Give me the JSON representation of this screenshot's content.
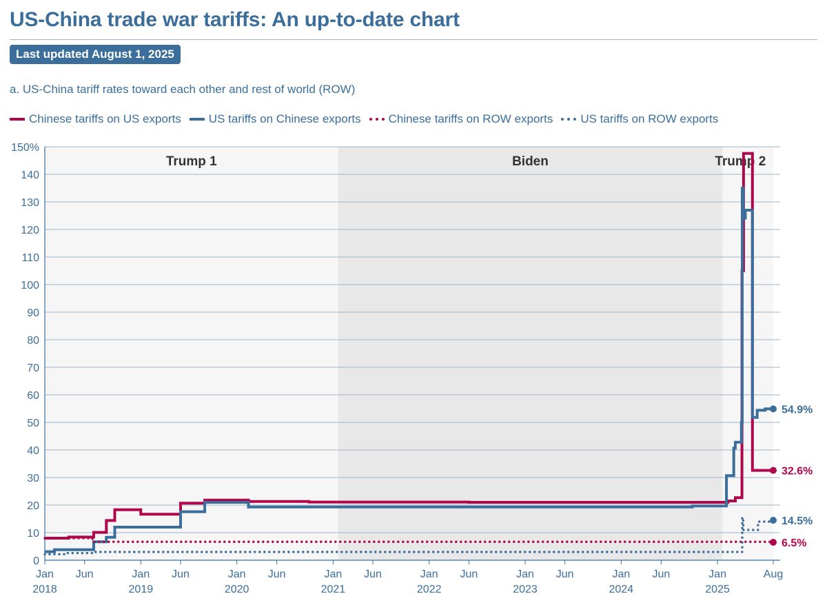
{
  "header": {
    "title": "US-China trade war tariffs: An up-to-date chart",
    "updated": "Last updated August 1, 2025",
    "subtitle": "a. US-China tariff rates toward each other and rest of world (ROW)"
  },
  "colors": {
    "china": "#b0064b",
    "us": "#3b6e9a"
  },
  "chart_data": {
    "type": "line",
    "title": "a. US-China tariff rates toward each other and rest of world (ROW)",
    "x_range": [
      "2018-01-01",
      "2025-08-01"
    ],
    "ylim": [
      0,
      150
    ],
    "y_ticks": [
      {
        "value": 0,
        "label": "0"
      },
      {
        "value": 10,
        "label": "10"
      },
      {
        "value": 20,
        "label": "20"
      },
      {
        "value": 30,
        "label": "30"
      },
      {
        "value": 40,
        "label": "40"
      },
      {
        "value": 50,
        "label": "50"
      },
      {
        "value": 60,
        "label": "60"
      },
      {
        "value": 70,
        "label": "70"
      },
      {
        "value": 80,
        "label": "80"
      },
      {
        "value": 90,
        "label": "90"
      },
      {
        "value": 100,
        "label": "100"
      },
      {
        "value": 110,
        "label": "110"
      },
      {
        "value": 120,
        "label": "120"
      },
      {
        "value": 130,
        "label": "130"
      },
      {
        "value": 140,
        "label": "140"
      },
      {
        "value": 150,
        "label": "150%"
      }
    ],
    "x_ticks": [
      {
        "date": "2018-01-01",
        "label": "Jan",
        "year": "2018"
      },
      {
        "date": "2018-06-01",
        "label": "Jun",
        "year": ""
      },
      {
        "date": "2019-01-01",
        "label": "Jan",
        "year": "2019"
      },
      {
        "date": "2019-06-01",
        "label": "Jun",
        "year": ""
      },
      {
        "date": "2020-01-01",
        "label": "Jan",
        "year": "2020"
      },
      {
        "date": "2020-06-01",
        "label": "Jun",
        "year": ""
      },
      {
        "date": "2021-01-01",
        "label": "Jan",
        "year": "2021"
      },
      {
        "date": "2021-06-01",
        "label": "Jun",
        "year": ""
      },
      {
        "date": "2022-01-01",
        "label": "Jan",
        "year": "2022"
      },
      {
        "date": "2022-06-01",
        "label": "Jun",
        "year": ""
      },
      {
        "date": "2023-01-01",
        "label": "Jan",
        "year": "2023"
      },
      {
        "date": "2023-06-01",
        "label": "Jun",
        "year": ""
      },
      {
        "date": "2024-01-01",
        "label": "Jan",
        "year": "2024"
      },
      {
        "date": "2024-06-01",
        "label": "Jun",
        "year": ""
      },
      {
        "date": "2025-01-01",
        "label": "Jan",
        "year": "2025"
      },
      {
        "date": "2025-08-01",
        "label": "Aug",
        "year": ""
      }
    ],
    "grid": true,
    "legend_position": "top",
    "eras": [
      {
        "name": "Trump 1",
        "start": "2018-01-01",
        "end": "2021-01-20",
        "fill": "#f6f6f6"
      },
      {
        "name": "Biden",
        "start": "2021-01-20",
        "end": "2025-01-20",
        "fill": "#e8e8e8"
      },
      {
        "name": "Trump 2",
        "start": "2025-01-20",
        "end": "2025-08-01",
        "fill": "#f6f6f6"
      }
    ],
    "series": [
      {
        "name": "Chinese tariffs on US exports",
        "style": "solid",
        "color": "#b0064b",
        "end_label": "32.6%",
        "points": [
          [
            "2018-01-01",
            8.0
          ],
          [
            "2018-04-02",
            8.4
          ],
          [
            "2018-07-06",
            10.1
          ],
          [
            "2018-08-23",
            14.4
          ],
          [
            "2018-09-24",
            18.3
          ],
          [
            "2019-01-01",
            16.7
          ],
          [
            "2019-06-01",
            20.7
          ],
          [
            "2019-09-01",
            21.8
          ],
          [
            "2020-02-14",
            21.3
          ],
          [
            "2020-10-01",
            21.1
          ],
          [
            "2021-06-01",
            21.1
          ],
          [
            "2022-06-01",
            21.0
          ],
          [
            "2023-06-01",
            21.0
          ],
          [
            "2025-02-10",
            21.5
          ],
          [
            "2025-03-10",
            22.7
          ],
          [
            "2025-04-04",
            105.0
          ],
          [
            "2025-04-10",
            147.6
          ],
          [
            "2025-05-14",
            32.6
          ],
          [
            "2025-08-01",
            32.6
          ]
        ]
      },
      {
        "name": "US tariffs on Chinese exports",
        "style": "solid",
        "color": "#3b6e9a",
        "end_label": "54.9%",
        "points": [
          [
            "2018-01-01",
            3.1
          ],
          [
            "2018-02-07",
            3.8
          ],
          [
            "2018-07-06",
            6.7
          ],
          [
            "2018-08-23",
            8.3
          ],
          [
            "2018-09-24",
            12.0
          ],
          [
            "2019-06-01",
            17.6
          ],
          [
            "2019-09-01",
            21.0
          ],
          [
            "2020-02-14",
            19.3
          ],
          [
            "2024-09-27",
            19.7
          ],
          [
            "2025-02-04",
            30.7
          ],
          [
            "2025-03-04",
            40.7
          ],
          [
            "2025-03-10",
            42.8
          ],
          [
            "2025-04-02",
            50.0
          ],
          [
            "2025-04-05",
            135.0
          ],
          [
            "2025-04-09",
            124.1
          ],
          [
            "2025-04-17",
            127.0
          ],
          [
            "2025-05-14",
            51.8
          ],
          [
            "2025-06-01",
            54.4
          ],
          [
            "2025-07-01",
            54.9
          ],
          [
            "2025-08-01",
            54.9
          ]
        ]
      },
      {
        "name": "Chinese tariffs on ROW exports",
        "style": "dotted",
        "color": "#b0064b",
        "end_label": "6.5%",
        "points": [
          [
            "2018-01-01",
            8.0
          ],
          [
            "2018-07-01",
            6.7
          ],
          [
            "2018-11-01",
            6.7
          ],
          [
            "2019-06-01",
            6.7
          ],
          [
            "2025-08-01",
            6.5
          ]
        ]
      },
      {
        "name": "US tariffs on ROW exports",
        "style": "dotted",
        "color": "#3b6e9a",
        "end_label": "14.5%",
        "points": [
          [
            "2018-01-01",
            2.2
          ],
          [
            "2018-03-23",
            2.6
          ],
          [
            "2018-07-01",
            3.0
          ],
          [
            "2025-03-12",
            3.0
          ],
          [
            "2025-04-05",
            15.5
          ],
          [
            "2025-04-09",
            11.0
          ],
          [
            "2025-06-04",
            14.0
          ],
          [
            "2025-08-01",
            14.5
          ]
        ]
      }
    ]
  }
}
